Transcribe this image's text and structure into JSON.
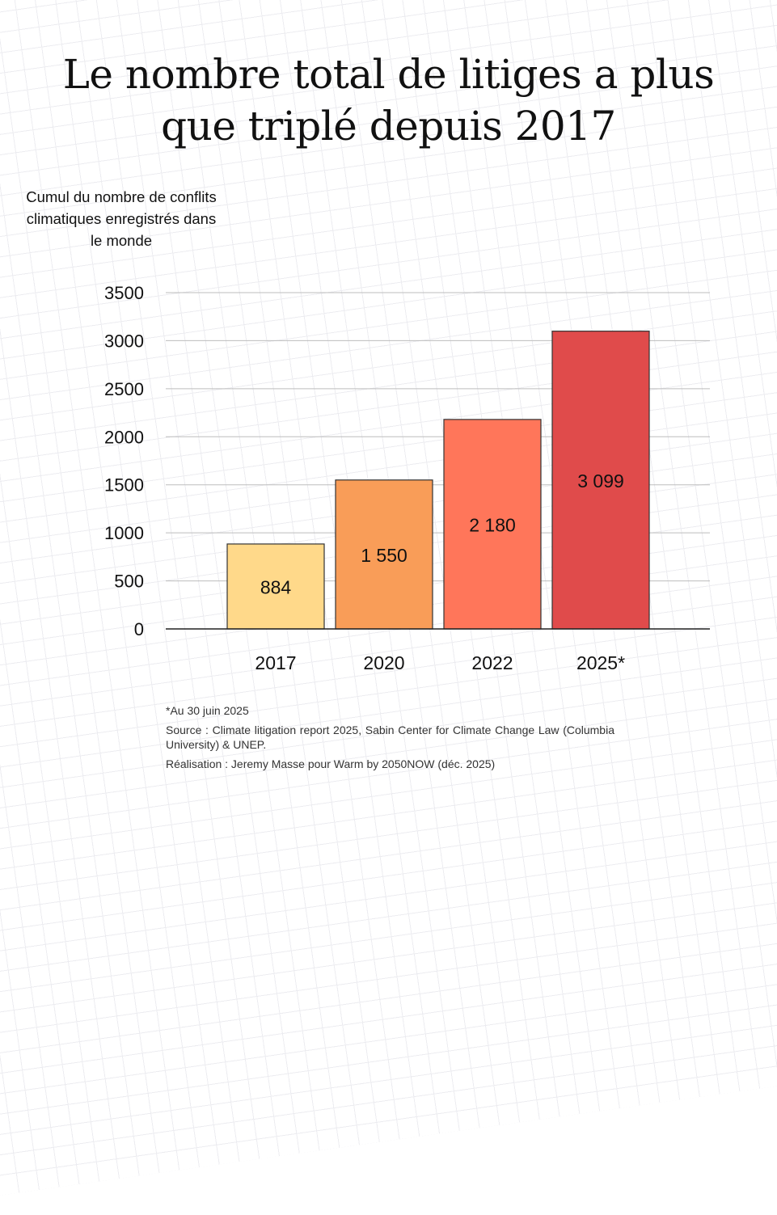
{
  "title_lines": [
    "Le nombre total de litiges a plus",
    "que triplé depuis 2017"
  ],
  "notes": {
    "footnote": "*Au 30 juin 2025",
    "source": "Source : Climate litigation report 2025, Sabin Center for Climate Change Law (Columbia University)  & UNEP.",
    "credit": "Réalisation : Jeremy Masse pour Warm by 2050NOW (déc. 2025)"
  },
  "chart_data": {
    "type": "bar",
    "title": "Le nombre total de litiges a plus que triplé depuis 2017",
    "ylabel": "Cumul du nombre de conflits climatiques enregistrés dans le monde",
    "xlabel": "",
    "categories": [
      "2017",
      "2020",
      "2022",
      "2025*"
    ],
    "values": [
      884,
      1550,
      2180,
      3099
    ],
    "data_labels": [
      "884",
      "1 550",
      "2 180",
      "3 099"
    ],
    "colors": [
      "#FFD98A",
      "#F99D58",
      "#FF765A",
      "#E04B4B"
    ],
    "ylim": [
      0,
      3500
    ],
    "yticks": [
      "0",
      "500",
      "1000",
      "1500",
      "2000",
      "2500",
      "3000",
      "3500"
    ],
    "grid": true,
    "legend": "none"
  }
}
